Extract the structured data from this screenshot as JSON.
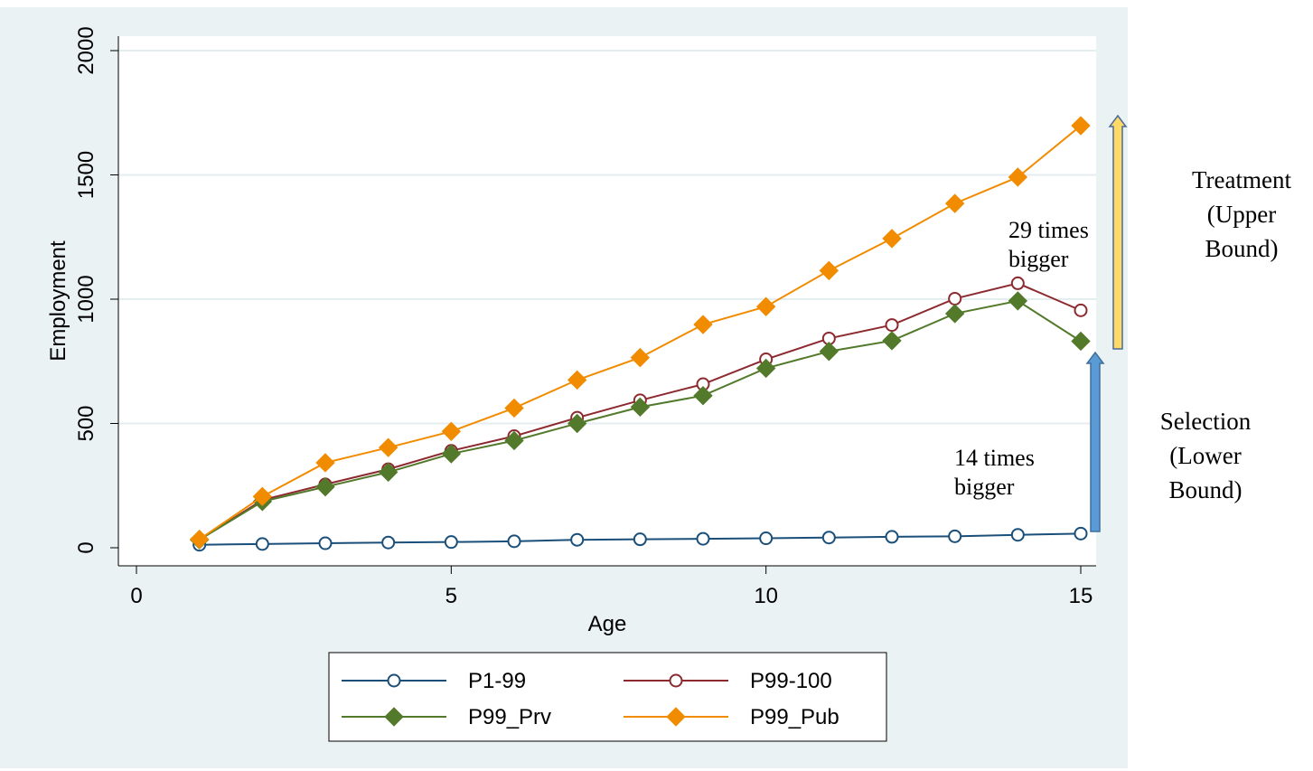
{
  "chart_data": {
    "type": "line",
    "xlabel": "Age",
    "ylabel": "Employment",
    "xlim": [
      0,
      15
    ],
    "ylim": [
      0,
      2000
    ],
    "xticks": [
      "0",
      "5",
      "10",
      "15"
    ],
    "yticks": [
      "0",
      "500",
      "1000",
      "1500",
      "2000"
    ],
    "grid": true,
    "legend_position": "bottom",
    "x": [
      1,
      2,
      3,
      4,
      5,
      6,
      7,
      8,
      9,
      10,
      11,
      12,
      13,
      14,
      15
    ],
    "series": [
      {
        "name": "P1-99",
        "color": "#1a4f7a",
        "marker": "hollow-circle",
        "values": [
          12,
          15,
          18,
          21,
          23,
          26,
          32,
          34,
          36,
          38,
          41,
          44,
          46,
          52,
          57
        ]
      },
      {
        "name": "P99-100",
        "color": "#8c2a2f",
        "marker": "hollow-circle",
        "values": [
          32,
          192,
          255,
          316,
          390,
          449,
          523,
          593,
          658,
          758,
          842,
          896,
          1002,
          1064,
          955
        ]
      },
      {
        "name": "P99_Prv",
        "color": "#537a2b",
        "marker": "diamond",
        "values": [
          32,
          186,
          245,
          304,
          378,
          431,
          500,
          566,
          612,
          722,
          790,
          833,
          942,
          993,
          831
        ]
      },
      {
        "name": "P99_Pub",
        "color": "#f18b00",
        "marker": "diamond",
        "values": [
          34,
          206,
          342,
          403,
          468,
          562,
          675,
          765,
          898,
          970,
          1115,
          1244,
          1385,
          1491,
          1698
        ]
      }
    ],
    "annotations": {
      "upper_ratio": "29 times\nbigger",
      "lower_ratio": "14 times\nbigger",
      "treatment": "Treatment\n(Upper\nBound)",
      "selection": "Selection\n(Lower\nBound)"
    },
    "arrow_colors": {
      "upper": "#ffd966",
      "lower": "#5b9bd5"
    },
    "colors": {
      "outer_background": "#eaf2f3",
      "plot_background": "#ffffff",
      "grid": "#e4eef1"
    }
  }
}
